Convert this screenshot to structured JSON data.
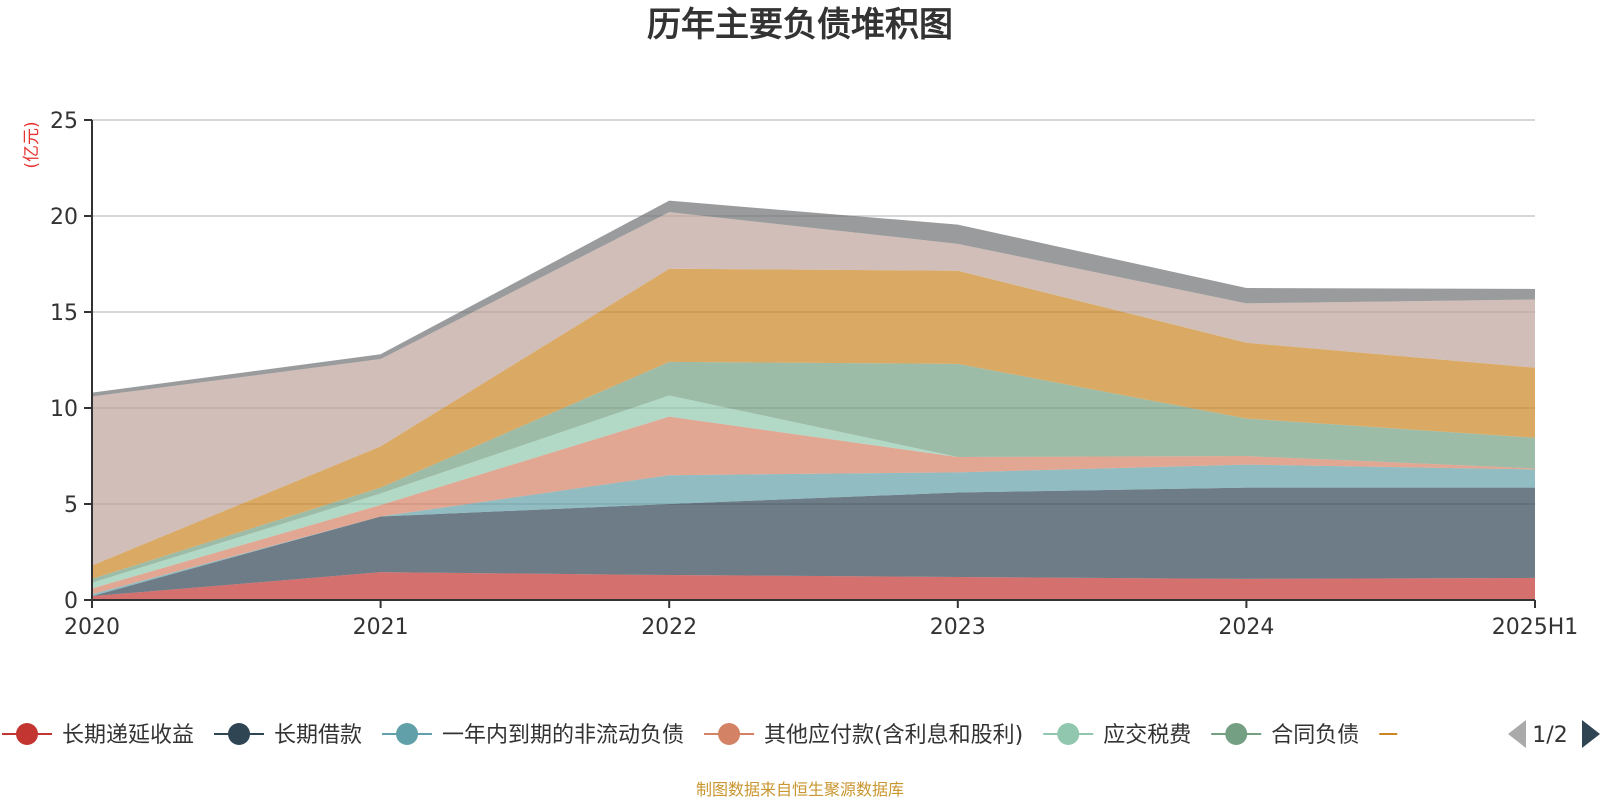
{
  "chart_data": {
    "type": "area",
    "stacked": true,
    "title": "历年主要负债堆积图",
    "unit_label": "(亿元)",
    "x": [
      "2020",
      "2021",
      "2022",
      "2023",
      "2024",
      "2025H1"
    ],
    "ylim": [
      0,
      25
    ],
    "yticks": [
      0,
      5,
      10,
      15,
      20,
      25
    ],
    "grid": true,
    "legend_position": "bottom",
    "legend_page": "1/2",
    "footer": "制图数据来自恒生聚源数据库",
    "series": [
      {
        "name": "长期递延收益",
        "color": "#c23531",
        "values": [
          0.2,
          1.45,
          1.3,
          1.2,
          1.1,
          1.15
        ]
      },
      {
        "name": "长期借款",
        "color": "#2f4554",
        "values": [
          0,
          2.9,
          3.7,
          4.4,
          4.75,
          4.7
        ]
      },
      {
        "name": "一年内到期的非流动负债",
        "color": "#61a0a8",
        "values": [
          0.1,
          0,
          1.5,
          1.05,
          1.2,
          0.95
        ]
      },
      {
        "name": "其他应付款(含利息和股利)",
        "color": "#d48265",
        "values": [
          0.3,
          0.6,
          3.05,
          0.8,
          0.45,
          0.05
        ]
      },
      {
        "name": "应交税费",
        "color": "#91c7ae",
        "values": [
          0.3,
          0.6,
          1.1,
          0,
          0,
          0
        ]
      },
      {
        "name": "合同负债",
        "color": "#749f83",
        "values": [
          0.2,
          0.3,
          1.75,
          4.85,
          1.95,
          1.6
        ]
      },
      {
        "name": "",
        "color": "#ca8622",
        "values": [
          0.7,
          2.15,
          4.85,
          4.85,
          3.95,
          3.65
        ]
      },
      {
        "name": "",
        "color": "#bda29a",
        "values": [
          8.8,
          4.55,
          2.95,
          1.4,
          2.05,
          3.55
        ]
      },
      {
        "name": "",
        "color": "#6e7074",
        "values": [
          0.2,
          0.25,
          0.6,
          1.0,
          0.8,
          0.55
        ]
      }
    ]
  }
}
